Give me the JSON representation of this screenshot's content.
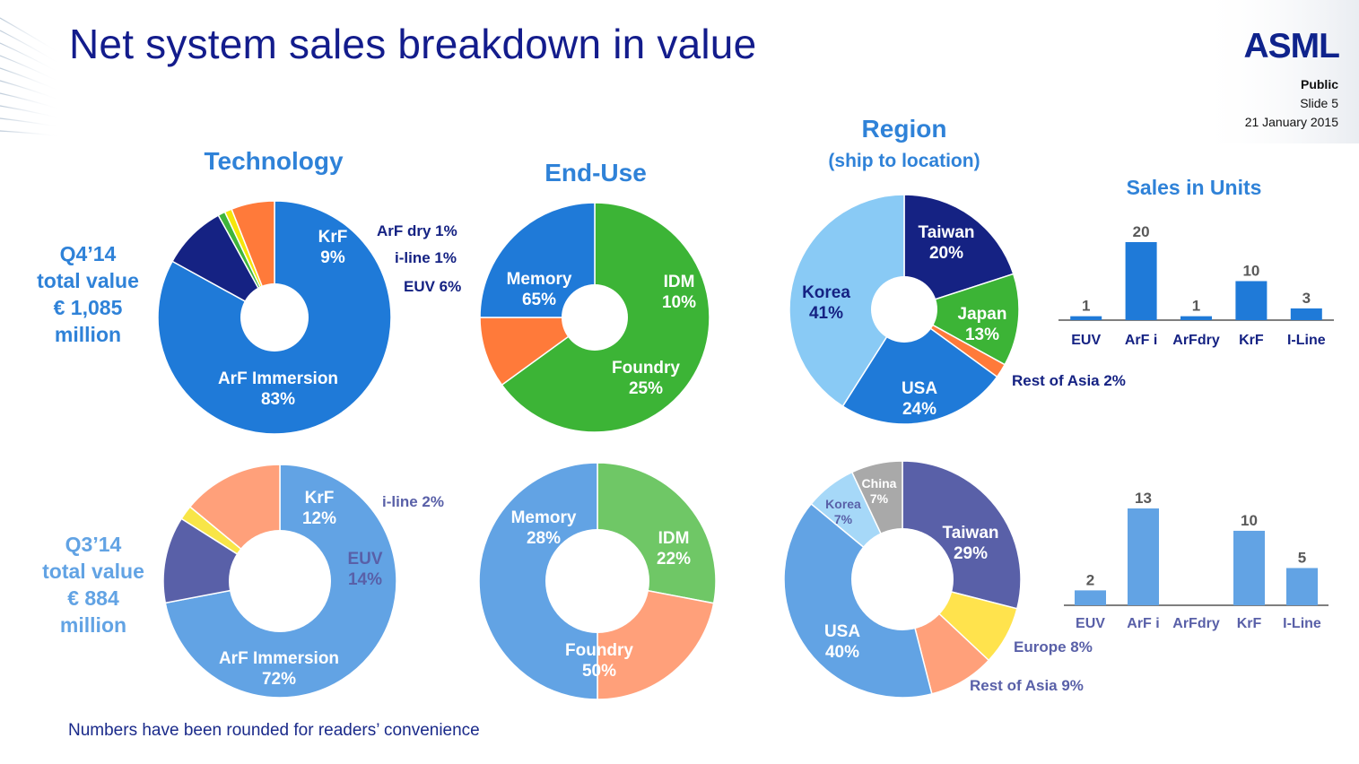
{
  "slide": {
    "title": "Net system sales breakdown in value",
    "logo": "ASML",
    "classification": "Public",
    "slide_number": "Slide 5",
    "date": "21 January 2015",
    "footnote": "Numbers have been rounded for readers’ convenience"
  },
  "headers": {
    "technology": "Technology",
    "end_use": "End-Use",
    "region": "Region",
    "region_sub": "(ship to location)",
    "sales_units": "Sales in Units"
  },
  "rows": [
    {
      "period": "Q4’14",
      "line2": "total value",
      "line3": "€ 1,085",
      "line4": "million",
      "color": "#2f82d8"
    },
    {
      "period": "Q3’14",
      "line2": "total value",
      "line3": "€ 884",
      "line4": "million",
      "color": "#62a3e4"
    }
  ],
  "chart_data": [
    {
      "type": "pie",
      "id": "tech-q4",
      "labels": [
        "ArF Immersion",
        "KrF",
        "ArF dry",
        "i-line",
        "EUV"
      ],
      "values": [
        83,
        9,
        1,
        1,
        6
      ],
      "colors": [
        "#1f7ad8",
        "#152283",
        "#3fb53b",
        "#f5e60a",
        "#ff7a3a"
      ]
    },
    {
      "type": "pie",
      "id": "enduse-q4",
      "labels": [
        "Memory",
        "IDM",
        "Foundry"
      ],
      "values": [
        65,
        10,
        25
      ],
      "colors": [
        "#3cb436",
        "#ff7a3a",
        "#1f7ad8"
      ]
    },
    {
      "type": "pie",
      "id": "region-q4",
      "labels": [
        "Taiwan",
        "Japan",
        "Rest of Asia",
        "USA",
        "Korea"
      ],
      "values": [
        20,
        13,
        2,
        24,
        41
      ],
      "colors": [
        "#152283",
        "#3cb436",
        "#ff7a3a",
        "#1f7ad8",
        "#89caf5"
      ]
    },
    {
      "type": "bar",
      "id": "units-q4",
      "title": "Sales in Units",
      "categories": [
        "EUV",
        "ArF i",
        "ArFdry",
        "KrF",
        "I-Line"
      ],
      "values": [
        1,
        20,
        1,
        10,
        3
      ],
      "color": "#1f7ad8",
      "label_color": "#152283"
    },
    {
      "type": "pie",
      "id": "tech-q3",
      "labels": [
        "ArF Immersion",
        "KrF",
        "i-line",
        "EUV"
      ],
      "values": [
        72,
        12,
        2,
        14
      ],
      "colors": [
        "#62a3e4",
        "#5960a8",
        "#f8e547",
        "#ffa07a"
      ]
    },
    {
      "type": "pie",
      "id": "enduse-q3",
      "labels": [
        "Memory",
        "IDM",
        "Foundry"
      ],
      "values": [
        28,
        22,
        50
      ],
      "colors": [
        "#6fc766",
        "#ffa07a",
        "#62a3e4"
      ]
    },
    {
      "type": "pie",
      "id": "region-q3",
      "labels": [
        "Taiwan",
        "Europe",
        "Rest of Asia",
        "USA",
        "Korea",
        "China"
      ],
      "values": [
        29,
        8,
        9,
        40,
        7,
        7
      ],
      "colors": [
        "#5960a8",
        "#ffe34d",
        "#ffa07a",
        "#62a3e4",
        "#a6d8f8",
        "#a9a9a9"
      ]
    },
    {
      "type": "bar",
      "id": "units-q3",
      "title": "Sales in Units",
      "categories": [
        "EUV",
        "ArF i",
        "ArFdry",
        "KrF",
        "I-Line"
      ],
      "values": [
        2,
        13,
        0,
        10,
        5
      ],
      "value_labels": [
        "2",
        "13",
        "",
        "10",
        "5"
      ],
      "color": "#62a3e4",
      "label_color": "#5960a8"
    }
  ],
  "slice_labels": [
    {
      "chart": "tech-q4",
      "lines": [
        "KrF",
        "9%"
      ],
      "color": "#ffffff",
      "inside": true
    },
    {
      "chart": "tech-q4",
      "lines": [
        "ArF dry 1%"
      ],
      "color": "#152283",
      "inside": false
    },
    {
      "chart": "tech-q4",
      "lines": [
        "i-line 1%"
      ],
      "color": "#152283",
      "inside": false
    },
    {
      "chart": "tech-q4",
      "lines": [
        "EUV 6%"
      ],
      "color": "#152283",
      "inside": false
    },
    {
      "chart": "tech-q4",
      "lines": [
        "ArF Immersion",
        "83%"
      ],
      "color": "#ffffff",
      "inside": true
    },
    {
      "chart": "enduse-q4",
      "lines": [
        "Memory",
        "65%"
      ],
      "color": "#ffffff",
      "inside": true
    },
    {
      "chart": "enduse-q4",
      "lines": [
        "IDM",
        "10%"
      ],
      "color": "#ffffff",
      "inside": true
    },
    {
      "chart": "enduse-q4",
      "lines": [
        "Foundry",
        "25%"
      ],
      "color": "#ffffff",
      "inside": true
    },
    {
      "chart": "region-q4",
      "lines": [
        "Taiwan",
        "20%"
      ],
      "color": "#ffffff",
      "inside": true
    },
    {
      "chart": "region-q4",
      "lines": [
        "Japan",
        "13%"
      ],
      "color": "#ffffff",
      "inside": true
    },
    {
      "chart": "region-q4",
      "lines": [
        "Rest of Asia 2%"
      ],
      "color": "#152283",
      "inside": false
    },
    {
      "chart": "region-q4",
      "lines": [
        "USA",
        "24%"
      ],
      "color": "#ffffff",
      "inside": true
    },
    {
      "chart": "region-q4",
      "lines": [
        "Korea",
        "41%"
      ],
      "color": "#152283",
      "inside": true
    },
    {
      "chart": "tech-q3",
      "lines": [
        "KrF",
        "12%"
      ],
      "color": "#ffffff",
      "inside": true
    },
    {
      "chart": "tech-q3",
      "lines": [
        "i-line 2%"
      ],
      "color": "#5960a8",
      "inside": false
    },
    {
      "chart": "tech-q3",
      "lines": [
        "EUV",
        "14%"
      ],
      "color": "#5960a8",
      "inside": true
    },
    {
      "chart": "tech-q3",
      "lines": [
        "ArF Immersion",
        "72%"
      ],
      "color": "#ffffff",
      "inside": true
    },
    {
      "chart": "enduse-q3",
      "lines": [
        "Memory",
        "28%"
      ],
      "color": "#ffffff",
      "inside": true
    },
    {
      "chart": "enduse-q3",
      "lines": [
        "IDM",
        "22%"
      ],
      "color": "#ffffff",
      "inside": true
    },
    {
      "chart": "enduse-q3",
      "lines": [
        "Foundry",
        "50%"
      ],
      "color": "#ffffff",
      "inside": true
    },
    {
      "chart": "region-q3",
      "lines": [
        "Taiwan",
        "29%"
      ],
      "color": "#ffffff",
      "inside": true
    },
    {
      "chart": "region-q3",
      "lines": [
        "Europe 8%"
      ],
      "color": "#5960a8",
      "inside": false
    },
    {
      "chart": "region-q3",
      "lines": [
        "Rest of Asia 9%"
      ],
      "color": "#5960a8",
      "inside": false
    },
    {
      "chart": "region-q3",
      "lines": [
        "USA",
        "40%"
      ],
      "color": "#ffffff",
      "inside": true
    },
    {
      "chart": "region-q3",
      "lines": [
        "Korea",
        "7%"
      ],
      "color": "#5960a8",
      "inside": true
    },
    {
      "chart": "region-q3",
      "lines": [
        "China",
        "7%"
      ],
      "color": "#ffffff",
      "inside": true
    }
  ]
}
